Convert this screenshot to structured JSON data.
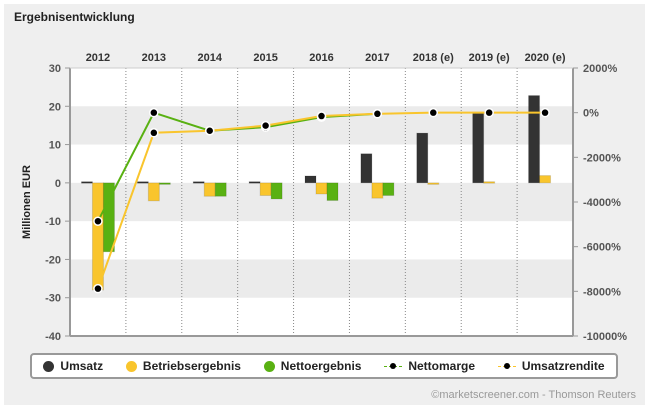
{
  "title": "Ergebnisentwicklung",
  "footer": "©marketscreener.com - Thomson Reuters",
  "colors": {
    "umsatz": "#333333",
    "betriebsergebnis": "#f9c52d",
    "nettoergebnis": "#59b112",
    "band": "#ebebeb"
  },
  "chart_data": {
    "type": "bar",
    "categories": [
      "2012",
      "2013",
      "2014",
      "2015",
      "2016",
      "2017",
      "2018 (e)",
      "2019 (e)",
      "2020 (e)"
    ],
    "ylabel": "Millionen EUR",
    "ylim": [
      -40,
      30
    ],
    "yticks": [
      "30",
      "20",
      "10",
      "0",
      "-10",
      "-20",
      "-30",
      "-40"
    ],
    "y2lim": [
      -10000,
      2000
    ],
    "y2ticks": [
      "2000%",
      "0%",
      "-2000%",
      "-4000%",
      "-6000%",
      "-8000%",
      "-10000%"
    ],
    "series": [
      {
        "name": "Umsatz",
        "kind": "bar",
        "color": "#333333",
        "values": [
          0.3,
          0.3,
          0.3,
          0.3,
          1.8,
          7.6,
          13,
          18.5,
          22.8
        ]
      },
      {
        "name": "Betriebsergebnis",
        "kind": "bar",
        "color": "#f9c52d",
        "values": [
          -28,
          -4.7,
          -3.5,
          -3.3,
          -2.9,
          -4,
          -0.3,
          0.3,
          1.9
        ]
      },
      {
        "name": "Nettoergebnis",
        "kind": "bar",
        "color": "#59b112",
        "values": [
          -18,
          0,
          -3.5,
          -4.2,
          -4.6,
          -3.3,
          null,
          null,
          null
        ]
      },
      {
        "name": "Nettomarge",
        "kind": "line",
        "axis": "right",
        "color": "#59b112",
        "values": [
          -4860,
          0,
          -810,
          -650,
          -200,
          -50,
          null,
          null,
          null
        ]
      },
      {
        "name": "Umsatzrendite",
        "kind": "line",
        "axis": "right",
        "color": "#f9c52d",
        "values": [
          -7880,
          -900,
          -810,
          -580,
          -150,
          -50,
          0,
          0,
          0
        ]
      }
    ],
    "grid": true,
    "legend": "bottom"
  }
}
